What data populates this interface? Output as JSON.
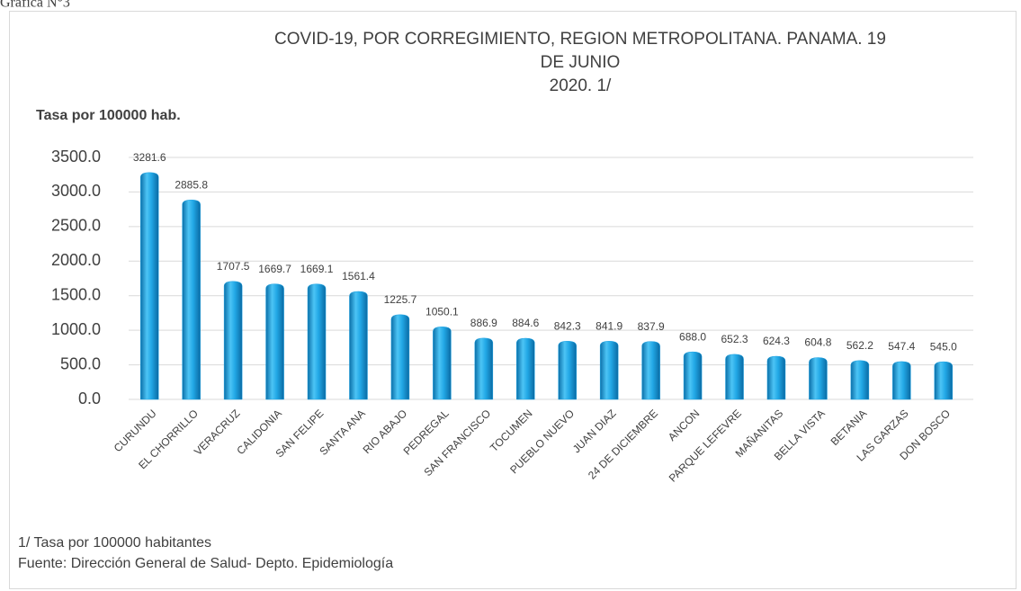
{
  "caption": "Gráfica N°3",
  "chart_data": {
    "type": "bar",
    "title": [
      "COVID-19, POR CORREGIMIENTO, REGION METROPOLITANA. PANAMA. 19",
      "DE JUNIO",
      "2020. 1/"
    ],
    "y_label": "Tasa por 100000 hab.",
    "categories": [
      "CURUNDU",
      "EL CHORRILLO",
      "VERACRUZ",
      "CALIDONIA",
      "SAN FELIPE",
      "SANTA ANA",
      "RIO ABAJO",
      "PEDREGAL",
      "SAN FRANCISCO",
      "TOCUMEN",
      "PUEBLO NUEVO",
      "JUAN DIAZ",
      "24 DE DICIEMBRE",
      "ANCON",
      "PARQUE LEFEVRE",
      "MAÑANITAS",
      "BELLA VISTA",
      "BETANIA",
      "LAS GARZAS",
      "DON BOSCO"
    ],
    "values": [
      3281.6,
      2885.8,
      1707.5,
      1669.7,
      1669.1,
      1561.4,
      1225.7,
      1050.1,
      886.9,
      884.6,
      842.3,
      841.9,
      837.9,
      688.0,
      652.3,
      624.3,
      604.8,
      562.2,
      547.4,
      545.0
    ],
    "value_labels": [
      "3281.6",
      "2885.8",
      "1707.5",
      "1669.7",
      "1669.1",
      "1561.4",
      "1225.7",
      "1050.1",
      "886.9",
      "884.6",
      "842.3",
      "841.9",
      "837.9",
      "688.0",
      "652.3",
      "624.3",
      "604.8",
      "562.2",
      "547.4",
      "545.0"
    ],
    "color": "#1ba1e2",
    "ylim": [
      0,
      3500
    ],
    "yticks": [
      {
        "value": 0,
        "label": "0.0"
      },
      {
        "value": 500,
        "label": "500.0"
      },
      {
        "value": 1000,
        "label": "1000.0"
      },
      {
        "value": 1500,
        "label": "1500.0"
      },
      {
        "value": 2000,
        "label": "2000.0"
      },
      {
        "value": 2500,
        "label": "2500.0"
      },
      {
        "value": 3000,
        "label": "3000.0"
      },
      {
        "value": 3500,
        "label": "3500.0"
      }
    ],
    "grid": true,
    "footnotes": [
      "1/ Tasa por 100000 habitantes",
      "Fuente: Dirección General de Salud- Depto. Epidemiología"
    ]
  }
}
